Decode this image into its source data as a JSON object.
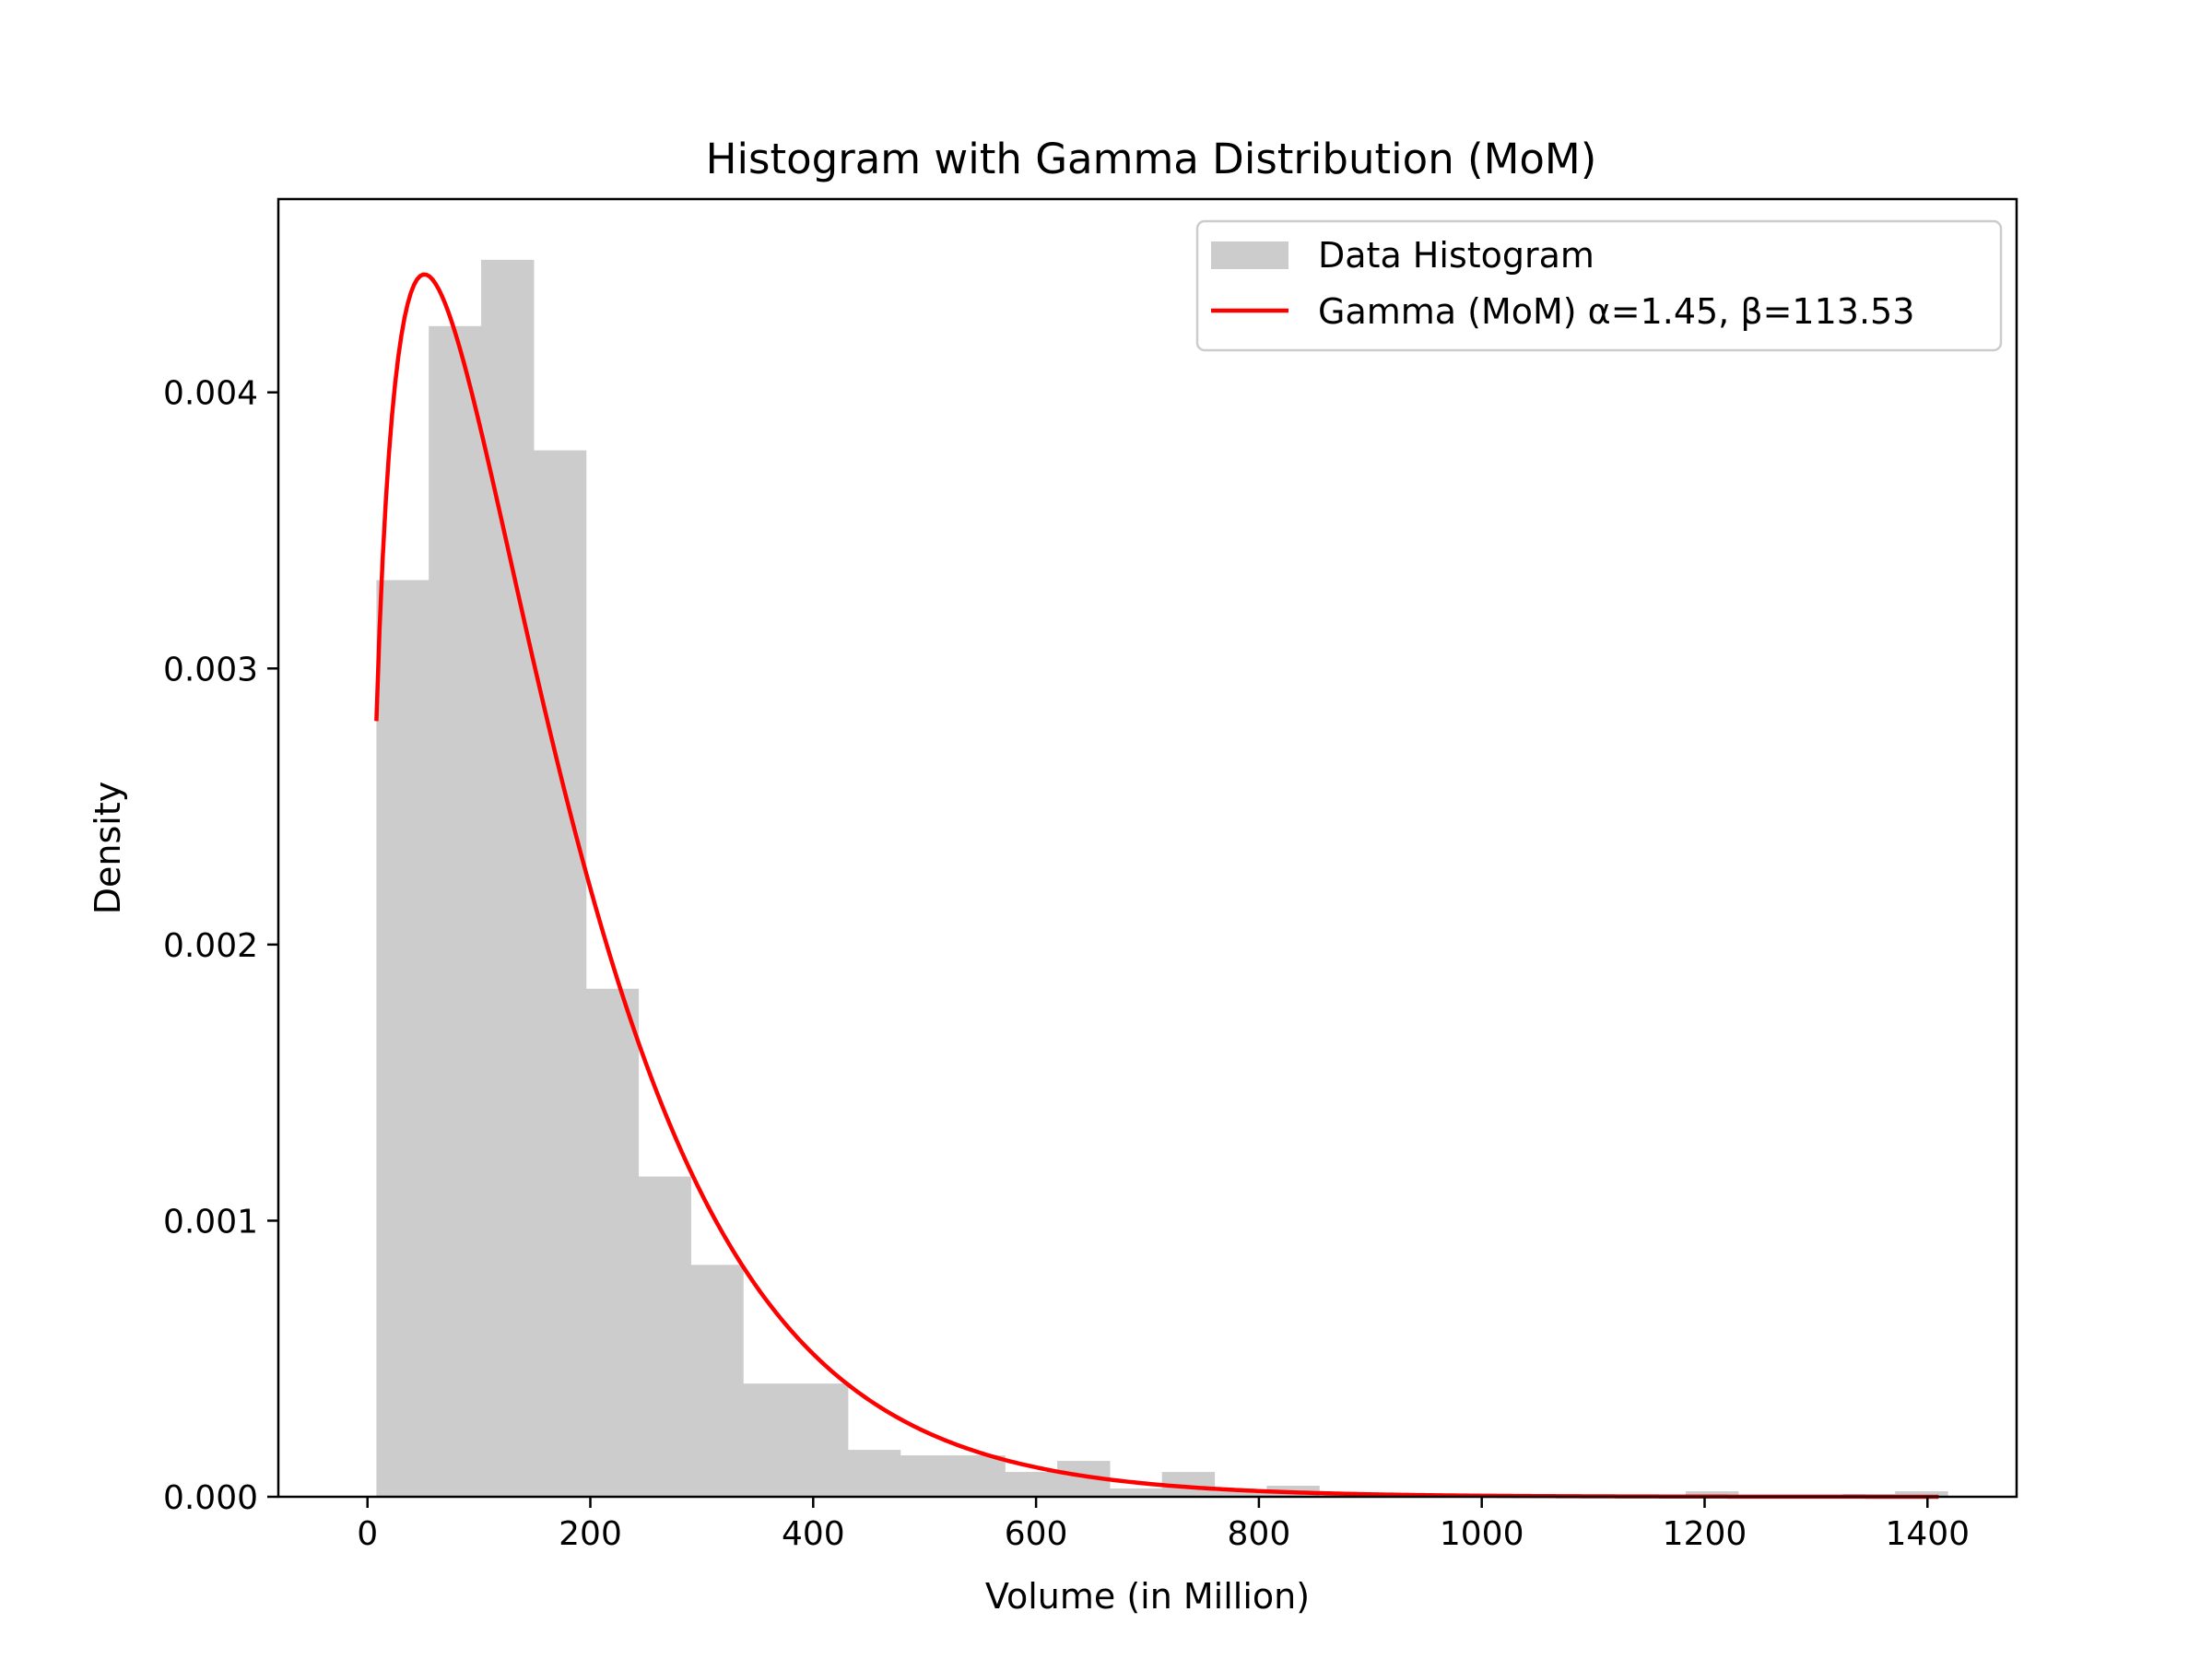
{
  "chart_data": {
    "type": "bar",
    "title": "Histogram with Gamma Distribution (MoM)",
    "xlabel": "Volume (in Million)",
    "ylabel": "Density",
    "xlim": [
      -80,
      1480
    ],
    "ylim": [
      0,
      0.0047
    ],
    "xticks": [
      0,
      200,
      400,
      600,
      800,
      1000,
      1200,
      1400
    ],
    "yticks": [
      0.0,
      0.001,
      0.002,
      0.003,
      0.004
    ],
    "ytick_labels": [
      "0.000",
      "0.001",
      "0.002",
      "0.003",
      "0.004"
    ],
    "grid": false,
    "legend_position": "top-right",
    "histogram": {
      "name": "Data Histogram",
      "color": "#cccccc",
      "bin_start": 8,
      "bin_width": 47,
      "values": [
        0.00332,
        0.00424,
        0.00448,
        0.00379,
        0.00184,
        0.00116,
        0.00084,
        0.00041,
        0.00041,
        0.00017,
        0.00015,
        0.00015,
        9e-05,
        0.00013,
        3e-05,
        9e-05,
        2e-05,
        4e-05,
        0.0,
        0.0,
        0.0,
        1e-05,
        0.0,
        0.0,
        0.0,
        2e-05,
        0.0,
        0.0,
        1e-05,
        2e-05
      ]
    },
    "fit_curve": {
      "name": "Gamma (MoM) α=1.45, β=113.53",
      "color": "#ff0000",
      "alpha": 1.45,
      "beta": 113.53,
      "x_start": 8,
      "x_end": 1410
    }
  }
}
